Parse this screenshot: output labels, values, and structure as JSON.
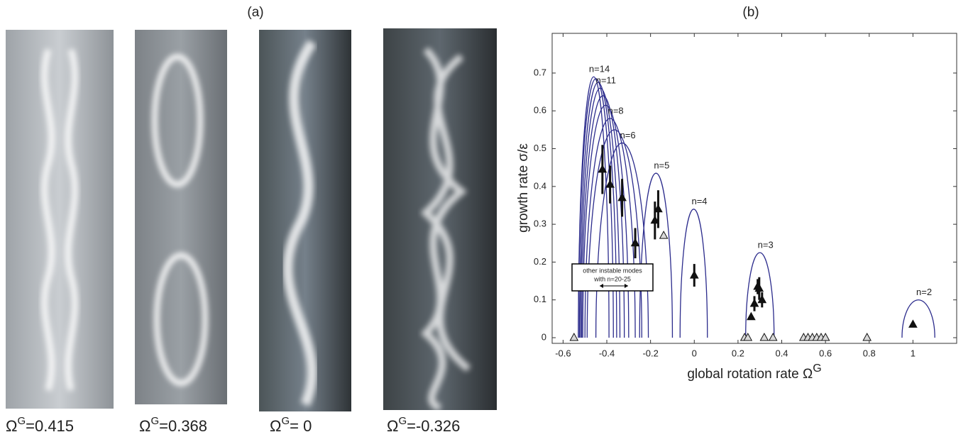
{
  "panel_a": {
    "label": "(a)",
    "captions": [
      {
        "base": "Ω",
        "sup": "G",
        "rest": "=0.415"
      },
      {
        "base": "Ω",
        "sup": "G",
        "rest": "=0.368"
      },
      {
        "base": "Ω",
        "sup": "G",
        "rest": "= 0"
      },
      {
        "base": "Ω",
        "sup": "G",
        "rest": "=-0.326"
      }
    ]
  },
  "chart_data": {
    "type": "arc-scatter",
    "title": "(b)",
    "xlabel": "global rotation rate Ω",
    "xlabel_sup": "G",
    "ylabel": "growth rate σ/ε",
    "xlim": [
      -0.65,
      1.2
    ],
    "ylim": [
      -0.015,
      0.805
    ],
    "xticks": [
      -0.6,
      -0.4,
      -0.2,
      0,
      0.2,
      0.4,
      0.6,
      0.8,
      1
    ],
    "yticks": [
      0,
      0.1,
      0.2,
      0.3,
      0.4,
      0.5,
      0.6,
      0.7
    ],
    "curve_color": "#2b2b8c",
    "curves": [
      {
        "label": "n=14",
        "x": [
          -0.53,
          -0.46,
          -0.39
        ],
        "values": [
          0,
          0.69,
          0
        ]
      },
      {
        "x": [
          -0.53,
          -0.45,
          -0.37
        ],
        "values": [
          0,
          0.685,
          0
        ]
      },
      {
        "x": [
          -0.525,
          -0.44,
          -0.355
        ],
        "values": [
          0,
          0.675,
          0
        ]
      },
      {
        "label": "n=11",
        "x": [
          -0.52,
          -0.43,
          -0.34
        ],
        "values": [
          0,
          0.66,
          0
        ]
      },
      {
        "x": [
          -0.515,
          -0.4175,
          -0.32
        ],
        "values": [
          0,
          0.64,
          0
        ]
      },
      {
        "x": [
          -0.51,
          -0.405,
          -0.3
        ],
        "values": [
          0,
          0.615,
          0
        ]
      },
      {
        "label": "n=8",
        "x": [
          -0.5,
          -0.385,
          -0.27
        ],
        "values": [
          0,
          0.58,
          0
        ]
      },
      {
        "x": [
          -0.49,
          -0.365,
          -0.24
        ],
        "values": [
          0,
          0.55,
          0
        ]
      },
      {
        "label": "n=6",
        "x": [
          -0.45,
          -0.33,
          -0.21
        ],
        "values": [
          0,
          0.515,
          0
        ]
      },
      {
        "label": "n=5",
        "x": [
          -0.25,
          -0.175,
          -0.1
        ],
        "values": [
          0,
          0.435,
          0
        ]
      },
      {
        "label": "n=4",
        "x": [
          -0.065,
          -0.0025,
          0.06
        ],
        "values": [
          0,
          0.34,
          0
        ]
      },
      {
        "label": "n=3",
        "x": [
          0.235,
          0.3,
          0.365
        ],
        "values": [
          0,
          0.225,
          0
        ]
      },
      {
        "label": "n=2",
        "x": [
          0.95,
          1.025,
          1.1
        ],
        "values": [
          0,
          0.1,
          0
        ]
      }
    ],
    "series": [
      {
        "filled": true,
        "color": "#111111",
        "x": [
          -0.42,
          -0.385,
          -0.33,
          -0.27,
          -0.18,
          -0.165,
          0.0,
          0.26,
          0.275,
          0.29,
          0.297,
          0.31,
          1.0
        ],
        "values": [
          0.445,
          0.405,
          0.37,
          0.25,
          0.31,
          0.34,
          0.165,
          0.055,
          0.09,
          0.135,
          0.13,
          0.1,
          0.035
        ],
        "errors": [
          0.065,
          0.05,
          0.05,
          0.04,
          0.05,
          0.05,
          0.03,
          null,
          0.02,
          0.02,
          0.03,
          0.02,
          null
        ]
      },
      {
        "filled": false,
        "color": "#111111",
        "x": [
          -0.55,
          -0.14,
          0.23,
          0.245,
          0.32,
          0.36,
          0.5,
          0.52,
          0.54,
          0.56,
          0.58,
          0.6,
          0.79
        ],
        "values": [
          0,
          0.27,
          0,
          0,
          0,
          0,
          0,
          0,
          0,
          0,
          0,
          0,
          0
        ]
      }
    ],
    "annotation": [
      "other instable modes",
      "with n=20-25"
    ]
  }
}
